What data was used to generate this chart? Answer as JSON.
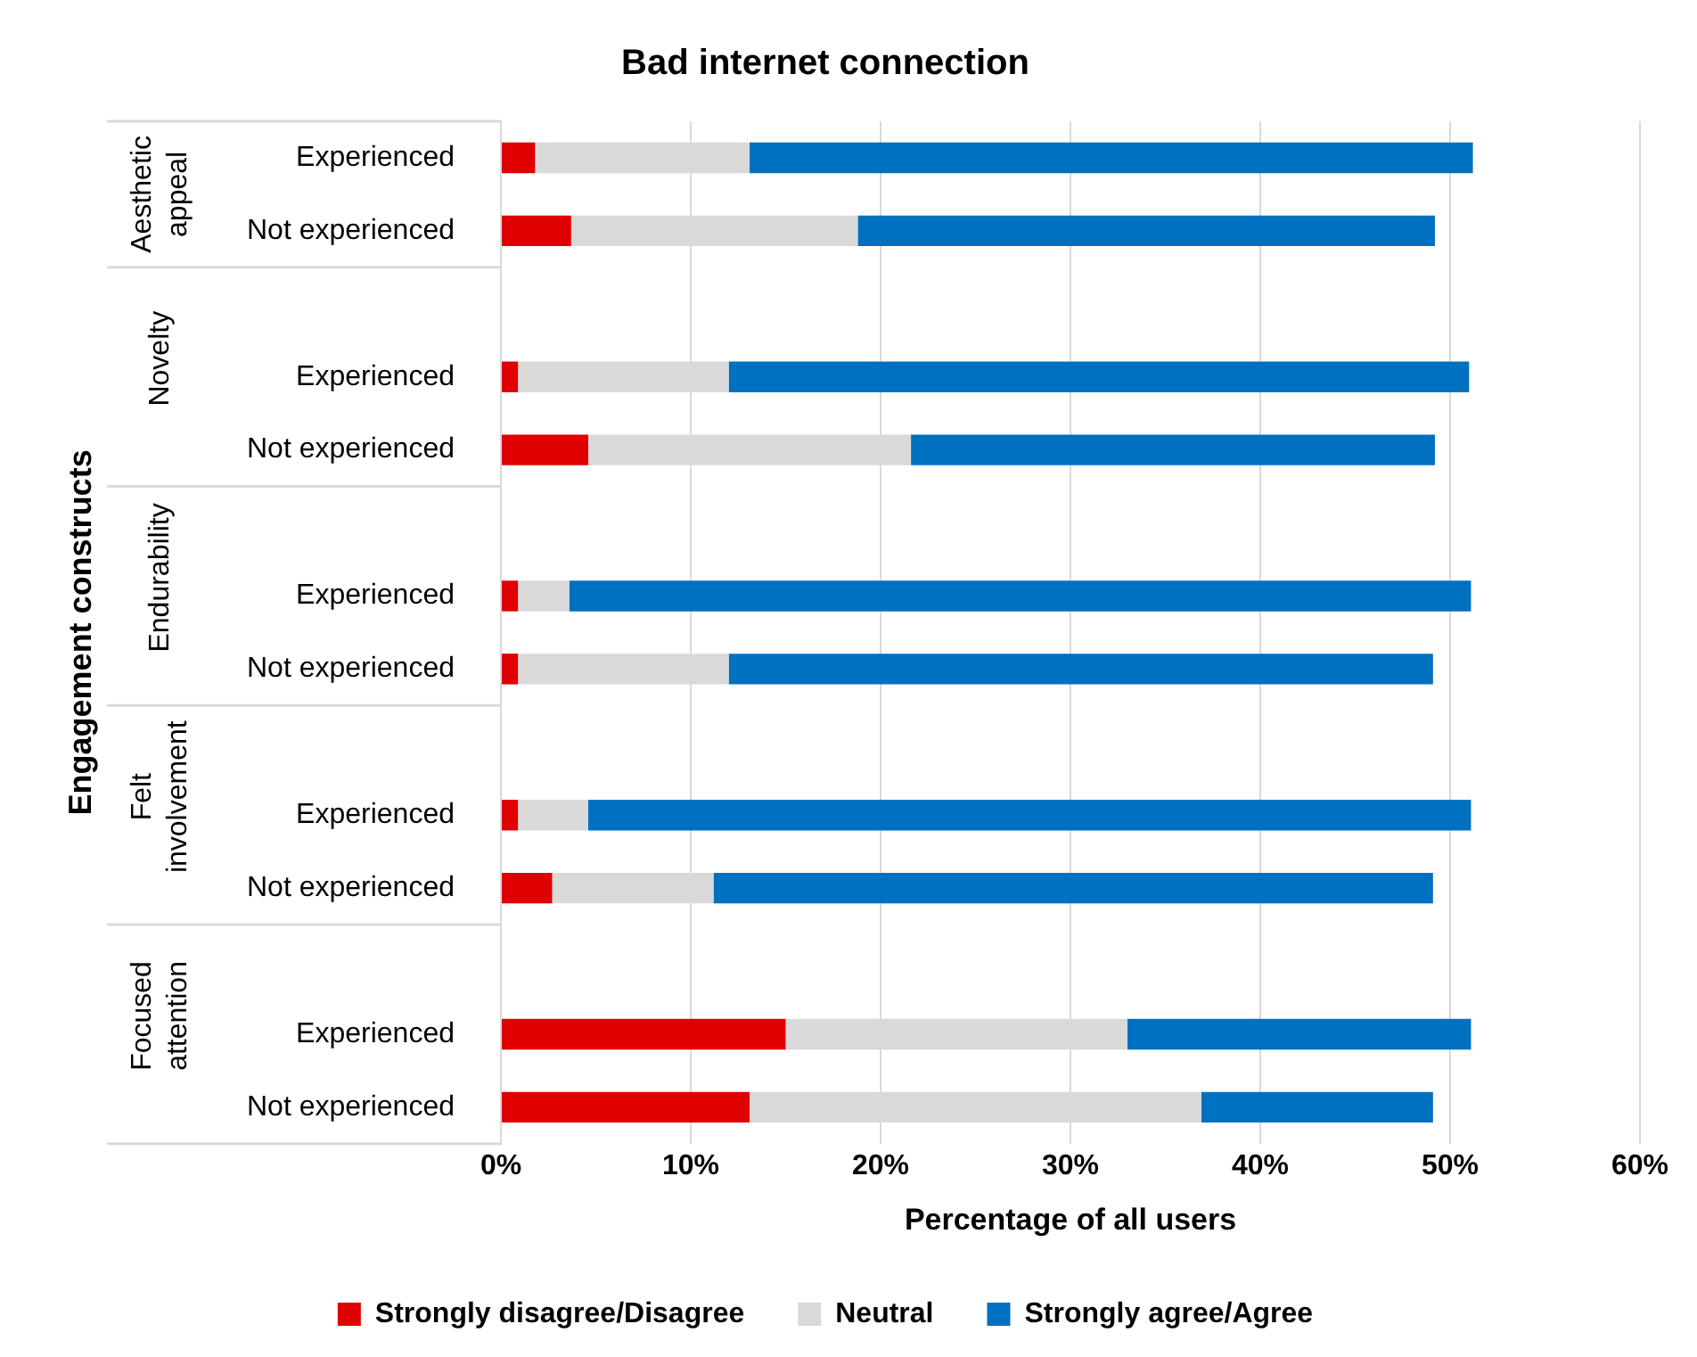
{
  "chart_data": {
    "type": "bar",
    "orientation": "horizontal",
    "stacked": true,
    "title": "Bad internet connection",
    "xlabel": "Percentage of all users",
    "ylabel": "Engagement constructs",
    "categories": [
      "Experienced",
      "Not experienced",
      null,
      "Experienced",
      "Not experienced",
      null,
      "Experienced",
      "Not experienced",
      null,
      "Experienced",
      "Not experienced",
      null,
      "Experienced",
      "Not experienced"
    ],
    "series": [
      {
        "name": "Strongly disagree/Disagree",
        "color": "#e00000",
        "values": [
          1.8,
          3.7,
          null,
          0.9,
          4.6,
          null,
          0.9,
          0.9,
          null,
          0.9,
          2.7,
          null,
          15.0,
          13.1
        ]
      },
      {
        "name": "Neutral",
        "color": "#d9d9d9",
        "values": [
          11.3,
          15.1,
          null,
          11.1,
          17.0,
          null,
          2.7,
          11.1,
          null,
          3.7,
          8.5,
          null,
          18.0,
          23.8
        ]
      },
      {
        "name": "Strongly agree/Agree",
        "color": "#0070c0",
        "values": [
          38.1,
          30.4,
          null,
          39.0,
          27.6,
          null,
          47.5,
          37.1,
          null,
          46.5,
          37.9,
          null,
          18.1,
          12.2
        ]
      }
    ],
    "annotations": [
      "Aesthetic appeal",
      "Novelty",
      "Endurability",
      "Felt involvement",
      "Focused attention"
    ],
    "xlim": [
      0,
      60
    ],
    "xticks": [
      {
        "value": 0,
        "label": "0%"
      },
      {
        "value": 10,
        "label": "10%"
      },
      {
        "value": 20,
        "label": "20%"
      },
      {
        "value": 30,
        "label": "30%"
      },
      {
        "value": 40,
        "label": "40%"
      },
      {
        "value": 50,
        "label": "50%"
      },
      {
        "value": 60,
        "label": "60%"
      }
    ],
    "grid": "x",
    "legend": "bottom"
  }
}
